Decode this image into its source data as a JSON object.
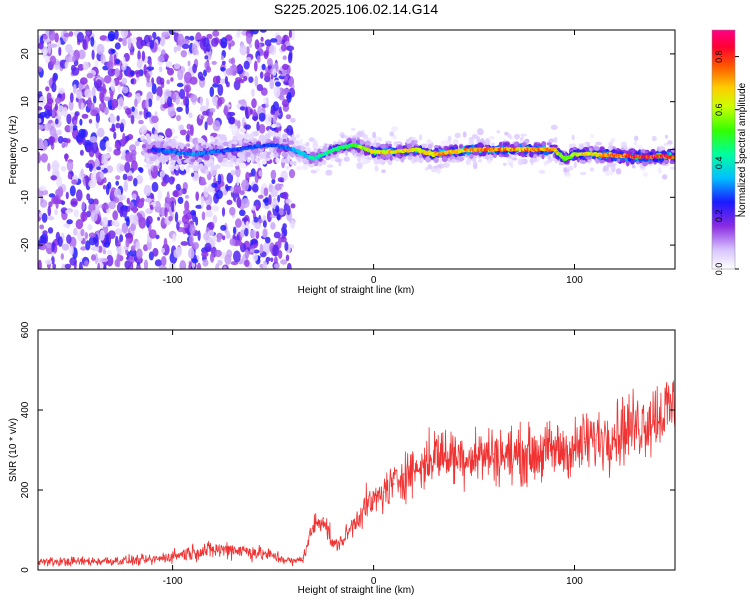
{
  "title": "S225.2025.106.02.14.G14",
  "chart_data": [
    {
      "type": "heatmap",
      "xlabel": "Height of straight line (km)",
      "ylabel": "Frequency (Hz)",
      "xlim": [
        -167,
        150
      ],
      "ylim": [
        -25,
        25
      ],
      "xticks": [
        -100,
        0,
        100
      ],
      "yticks": [
        -20,
        -10,
        0,
        10,
        20
      ],
      "colorbar": {
        "label": "Normalized spectral amplitude",
        "range": [
          0.0,
          0.9
        ],
        "ticks": [
          "0.0",
          "0.2",
          "0.4",
          "0.6",
          "0.8"
        ]
      },
      "ridge": {
        "x": [
          -110,
          -90,
          -70,
          -50,
          -40,
          -30,
          -20,
          -10,
          0,
          10,
          20,
          30,
          50,
          70,
          90,
          95,
          100,
          110,
          130,
          150
        ],
        "frequency": [
          0,
          -1,
          0,
          1,
          0,
          -2,
          0,
          1,
          -0.5,
          -0.5,
          0,
          -1,
          0,
          0,
          0,
          -2,
          -1,
          -1,
          -1.5,
          -1.5
        ],
        "amplitude": [
          0.3,
          0.35,
          0.3,
          0.3,
          0.35,
          0.45,
          0.5,
          0.55,
          0.7,
          0.75,
          0.7,
          0.75,
          0.8,
          0.8,
          0.8,
          0.55,
          0.7,
          0.75,
          0.9,
          0.9
        ]
      },
      "grid": false
    },
    {
      "type": "line",
      "xlabel": "Height of straight line (km)",
      "ylabel": "SNR (10 * v/v)",
      "xlim": [
        -167,
        150
      ],
      "ylim": [
        0,
        600
      ],
      "xticks": [
        -100,
        0,
        100
      ],
      "yticks": [
        0,
        200,
        400,
        600
      ],
      "color": "#ef3232",
      "series": [
        {
          "x": [
            -167,
            -140,
            -110,
            -100,
            -90,
            -80,
            -70,
            -60,
            -50,
            -40,
            -35,
            -30,
            -25,
            -20,
            -15,
            -10,
            -5,
            0,
            5,
            10,
            15,
            20,
            25,
            30,
            40,
            50,
            60,
            70,
            80,
            90,
            95,
            100,
            105,
            110,
            120,
            130,
            140,
            150
          ],
          "values": [
            20,
            22,
            25,
            35,
            45,
            50,
            52,
            45,
            35,
            20,
            30,
            110,
            130,
            60,
            75,
            115,
            155,
            170,
            195,
            215,
            240,
            250,
            260,
            290,
            285,
            285,
            290,
            285,
            290,
            300,
            300,
            300,
            320,
            325,
            345,
            360,
            385,
            410
          ]
        }
      ],
      "grid": false
    }
  ]
}
